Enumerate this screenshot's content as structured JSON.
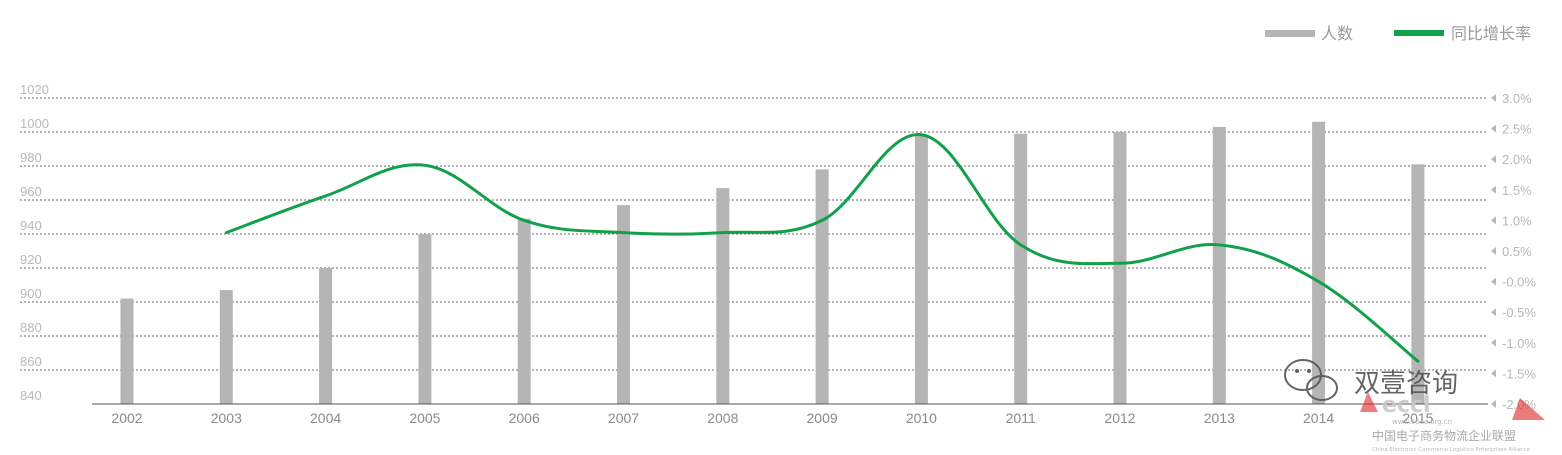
{
  "chart_data": {
    "type": "bar+line",
    "categories": [
      "2002",
      "2003",
      "2004",
      "2005",
      "2006",
      "2007",
      "2008",
      "2009",
      "2010",
      "2011",
      "2012",
      "2013",
      "2014",
      "2015"
    ],
    "series": [
      {
        "name": "人数",
        "type": "bar",
        "axis": "left",
        "color": "#b5b5b5",
        "values": [
          902,
          907,
          920,
          940,
          949,
          957,
          967,
          978,
          998,
          999,
          1000,
          1003,
          1006,
          981
        ]
      },
      {
        "name": "同比增长率",
        "type": "line",
        "axis": "right",
        "color": "#13a04a",
        "values": [
          null,
          0.8,
          1.4,
          1.9,
          1.0,
          0.8,
          0.8,
          1.0,
          2.4,
          0.6,
          0.3,
          0.6,
          0.0,
          -1.3
        ]
      }
    ],
    "y_left": {
      "min": 840,
      "max": 1020,
      "ticks": [
        "840",
        "860",
        "880",
        "900",
        "920",
        "940",
        "960",
        "980",
        "1000",
        "1020"
      ]
    },
    "y_right": {
      "min": -2.0,
      "max": 3.0,
      "ticks": [
        "-2.0%",
        "-1.5%",
        "-1.0%",
        "-0.5%",
        "-0.0%",
        "0.5%",
        "1.0%",
        "1.5%",
        "2.0%",
        "2.5%",
        "3.0%"
      ]
    },
    "grid": true,
    "legend_position": "top-right"
  },
  "watermark": {
    "text": "双壹咨询",
    "org_name": "中国电子商务物流企业联盟",
    "org_en": "China Electronic Commerce Logistics Enterprises Alliance",
    "url": "www.56ec.org.cn"
  }
}
